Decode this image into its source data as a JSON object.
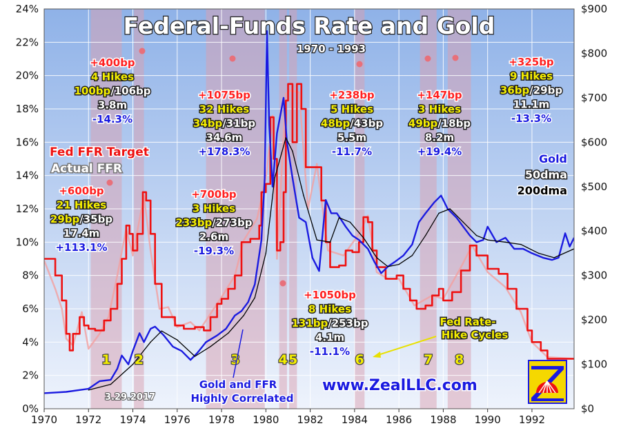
{
  "chart_data": {
    "type": "line",
    "title": "Federal-Funds Rate and Gold",
    "period_label": "1970 - 1993",
    "x_ticks": [
      "1970",
      "1972",
      "1974",
      "1976",
      "1978",
      "1980",
      "1982",
      "1984",
      "1986",
      "1988",
      "1990",
      "1992"
    ],
    "x_range": [
      1970,
      1993.9
    ],
    "y_left": {
      "ticks": [
        "0%",
        "2%",
        "4%",
        "6%",
        "8%",
        "10%",
        "12%",
        "14%",
        "16%",
        "18%",
        "20%",
        "22%",
        "24%"
      ],
      "range": [
        0,
        24
      ]
    },
    "y_right": {
      "ticks": [
        "$0",
        "$100",
        "$200",
        "$300",
        "$400",
        "$500",
        "$600",
        "$700",
        "$800",
        "$900"
      ],
      "range": [
        0,
        900
      ]
    },
    "grid": true,
    "colors": {
      "ffr_target": "#ee1111",
      "actual_ffr": "#f2a0a0",
      "gold": "#1a1ae0",
      "gold_200dma": "#000000",
      "hike_band": "#d9a0b0",
      "bg_top": "#8fb2e8",
      "bg_bottom": "#eef3fc"
    },
    "legend": {
      "left": [
        "Fed FFR Target",
        "Actual FFR"
      ],
      "right": [
        "Gold",
        "50dma",
        "200dma"
      ]
    },
    "hike_cycles": [
      {
        "label": "1",
        "start": 1972.1,
        "end": 1973.5
      },
      {
        "label": "2",
        "start": 1974.05,
        "end": 1974.5
      },
      {
        "label": "3",
        "start": 1977.3,
        "end": 1979.95
      },
      {
        "label": "4",
        "start": 1980.6,
        "end": 1980.95
      },
      {
        "label": "5",
        "start": 1981.05,
        "end": 1981.4
      },
      {
        "label": "6",
        "start": 1984.0,
        "end": 1984.45
      },
      {
        "label": "7",
        "start": 1986.95,
        "end": 1987.7
      },
      {
        "label": "8",
        "start": 1988.2,
        "end": 1989.25
      }
    ],
    "cycle_annotations": [
      {
        "total": "+600bp",
        "hikes": "21 Hikes",
        "bp": "29bp",
        "bp2": "/35bp",
        "months": "17.4m",
        "gold": "+113.1%"
      },
      {
        "total": "+400bp",
        "hikes": "4 Hikes",
        "bp": "100bp",
        "bp2": "/106bp",
        "months": "3.8m",
        "gold": "-14.3%"
      },
      {
        "total": "+700bp",
        "hikes": "3 Hikes",
        "bp": "233bp",
        "bp2": "/273bp",
        "months": "2.6m",
        "gold": "-19.3%"
      },
      {
        "total": "+1075bp",
        "hikes": "32 Hikes",
        "bp": "34bp",
        "bp2": "/31bp",
        "months": "34.6m",
        "gold": "+178.3%"
      },
      {
        "total": "+1050bp",
        "hikes": "8 Hikes",
        "bp": "131bp",
        "bp2": "/253bp",
        "months": "4.1m",
        "gold": "-11.1%"
      },
      {
        "total": "+238bp",
        "hikes": "5 Hikes",
        "bp": "48bp",
        "bp2": "/43bp",
        "months": "5.5m",
        "gold": "-11.7%"
      },
      {
        "total": "+147bp",
        "hikes": "3 Hikes",
        "bp": "49bp",
        "bp2": "/18bp",
        "months": "8.2m",
        "gold": "+19.4%"
      },
      {
        "total": "+325bp",
        "hikes": "9 Hikes",
        "bp": "36bp",
        "bp2": "/29bp",
        "months": "11.1m",
        "gold": "-13.3%"
      }
    ],
    "annotations": {
      "hike_cycles_label": [
        "Fed Rate-",
        "Hike Cycles"
      ],
      "correlated_label": [
        "Gold and FFR",
        "Highly Correlated"
      ],
      "date": "3.29.2017",
      "website": "www.ZealLLC.com"
    },
    "series": [
      {
        "name": "Fed FFR Target",
        "axis": "left",
        "points": [
          [
            1970.0,
            9.0
          ],
          [
            1970.5,
            8.0
          ],
          [
            1970.8,
            6.5
          ],
          [
            1971.0,
            4.5
          ],
          [
            1971.15,
            3.5
          ],
          [
            1971.3,
            4.5
          ],
          [
            1971.6,
            5.5
          ],
          [
            1971.8,
            5.0
          ],
          [
            1972.0,
            4.8
          ],
          [
            1972.3,
            4.7
          ],
          [
            1972.7,
            5.3
          ],
          [
            1973.0,
            6.0
          ],
          [
            1973.3,
            7.5
          ],
          [
            1973.5,
            9.0
          ],
          [
            1973.7,
            11.0
          ],
          [
            1973.85,
            10.5
          ],
          [
            1974.0,
            9.5
          ],
          [
            1974.2,
            10.5
          ],
          [
            1974.45,
            13.0
          ],
          [
            1974.6,
            12.5
          ],
          [
            1974.8,
            10.5
          ],
          [
            1975.0,
            7.5
          ],
          [
            1975.3,
            5.5
          ],
          [
            1975.6,
            5.5
          ],
          [
            1975.9,
            5.0
          ],
          [
            1976.3,
            4.8
          ],
          [
            1976.8,
            4.9
          ],
          [
            1977.2,
            4.7
          ],
          [
            1977.5,
            5.5
          ],
          [
            1977.8,
            6.3
          ],
          [
            1978.0,
            6.6
          ],
          [
            1978.3,
            7.2
          ],
          [
            1978.6,
            8.0
          ],
          [
            1978.9,
            10.0
          ],
          [
            1979.3,
            10.2
          ],
          [
            1979.7,
            11.0
          ],
          [
            1979.8,
            13.0
          ],
          [
            1980.0,
            13.5
          ],
          [
            1980.2,
            17.5
          ],
          [
            1980.35,
            15.0
          ],
          [
            1980.5,
            9.5
          ],
          [
            1980.65,
            10.0
          ],
          [
            1980.8,
            13.0
          ],
          [
            1980.9,
            18.5
          ],
          [
            1981.0,
            19.5
          ],
          [
            1981.2,
            16.0
          ],
          [
            1981.4,
            19.5
          ],
          [
            1981.6,
            18.0
          ],
          [
            1981.8,
            14.5
          ],
          [
            1982.0,
            14.5
          ],
          [
            1982.3,
            14.5
          ],
          [
            1982.5,
            12.5
          ],
          [
            1982.7,
            10.0
          ],
          [
            1982.9,
            8.5
          ],
          [
            1983.3,
            8.6
          ],
          [
            1983.6,
            9.5
          ],
          [
            1983.9,
            9.4
          ],
          [
            1984.2,
            10.0
          ],
          [
            1984.4,
            11.5
          ],
          [
            1984.6,
            11.2
          ],
          [
            1984.8,
            9.5
          ],
          [
            1985.0,
            8.5
          ],
          [
            1985.4,
            7.8
          ],
          [
            1985.9,
            8.0
          ],
          [
            1986.2,
            7.2
          ],
          [
            1986.5,
            6.5
          ],
          [
            1986.8,
            6.0
          ],
          [
            1987.2,
            6.2
          ],
          [
            1987.5,
            6.8
          ],
          [
            1987.8,
            7.2
          ],
          [
            1988.0,
            6.5
          ],
          [
            1988.4,
            7.0
          ],
          [
            1988.8,
            8.3
          ],
          [
            1989.2,
            9.8
          ],
          [
            1989.5,
            9.2
          ],
          [
            1990.0,
            8.4
          ],
          [
            1990.5,
            8.1
          ],
          [
            1990.9,
            7.2
          ],
          [
            1991.3,
            6.0
          ],
          [
            1991.8,
            4.7
          ],
          [
            1992.0,
            4.0
          ],
          [
            1992.4,
            3.5
          ],
          [
            1992.7,
            3.0
          ],
          [
            1993.9,
            3.0
          ]
        ]
      },
      {
        "name": "Actual FFR",
        "axis": "left",
        "points": [
          [
            1970.0,
            8.9
          ],
          [
            1970.5,
            7.2
          ],
          [
            1970.8,
            6.0
          ],
          [
            1971.0,
            4.2
          ],
          [
            1971.3,
            3.8
          ],
          [
            1971.7,
            5.8
          ],
          [
            1972.0,
            3.6
          ],
          [
            1972.5,
            4.5
          ],
          [
            1972.9,
            5.5
          ],
          [
            1973.3,
            8.0
          ],
          [
            1973.7,
            10.8
          ],
          [
            1974.0,
            9.2
          ],
          [
            1974.5,
            12.8
          ],
          [
            1974.8,
            9.5
          ],
          [
            1975.2,
            6.0
          ],
          [
            1975.6,
            6.1
          ],
          [
            1976.0,
            4.9
          ],
          [
            1976.6,
            5.2
          ],
          [
            1977.0,
            4.7
          ],
          [
            1977.6,
            5.9
          ],
          [
            1978.0,
            6.7
          ],
          [
            1978.6,
            8.0
          ],
          [
            1979.0,
            10.1
          ],
          [
            1979.6,
            11.4
          ],
          [
            1980.0,
            13.8
          ],
          [
            1980.3,
            17.6
          ],
          [
            1980.5,
            9.0
          ],
          [
            1980.9,
            18.9
          ],
          [
            1981.1,
            19.1
          ],
          [
            1981.5,
            19.0
          ],
          [
            1981.9,
            12.0
          ],
          [
            1982.3,
            14.7
          ],
          [
            1982.8,
            9.5
          ],
          [
            1983.5,
            9.2
          ],
          [
            1984.2,
            10.5
          ],
          [
            1984.6,
            11.6
          ],
          [
            1985.0,
            8.2
          ],
          [
            1985.5,
            7.8
          ],
          [
            1986.0,
            7.8
          ],
          [
            1986.7,
            6.2
          ],
          [
            1987.5,
            6.8
          ],
          [
            1988.0,
            6.6
          ],
          [
            1988.8,
            8.5
          ],
          [
            1989.3,
            9.8
          ],
          [
            1990.0,
            8.2
          ],
          [
            1990.8,
            7.3
          ],
          [
            1991.5,
            5.8
          ],
          [
            1992.0,
            4.0
          ],
          [
            1992.7,
            3.1
          ],
          [
            1993.9,
            3.0
          ]
        ]
      },
      {
        "name": "Gold",
        "axis": "right",
        "points": [
          [
            1970.0,
            35
          ],
          [
            1971.0,
            38
          ],
          [
            1972.0,
            45
          ],
          [
            1972.5,
            62
          ],
          [
            1973.0,
            65
          ],
          [
            1973.3,
            90
          ],
          [
            1973.5,
            120
          ],
          [
            1973.8,
            100
          ],
          [
            1974.0,
            130
          ],
          [
            1974.3,
            170
          ],
          [
            1974.5,
            150
          ],
          [
            1974.8,
            180
          ],
          [
            1975.0,
            185
          ],
          [
            1975.4,
            165
          ],
          [
            1975.8,
            140
          ],
          [
            1976.2,
            130
          ],
          [
            1976.6,
            110
          ],
          [
            1976.9,
            125
          ],
          [
            1977.3,
            150
          ],
          [
            1977.8,
            165
          ],
          [
            1978.2,
            180
          ],
          [
            1978.6,
            210
          ],
          [
            1978.9,
            220
          ],
          [
            1979.2,
            240
          ],
          [
            1979.5,
            280
          ],
          [
            1979.8,
            380
          ],
          [
            1979.95,
            520
          ],
          [
            1980.05,
            850
          ],
          [
            1980.15,
            640
          ],
          [
            1980.3,
            500
          ],
          [
            1980.5,
            620
          ],
          [
            1980.8,
            700
          ],
          [
            1980.95,
            600
          ],
          [
            1981.2,
            520
          ],
          [
            1981.5,
            430
          ],
          [
            1981.8,
            420
          ],
          [
            1982.1,
            340
          ],
          [
            1982.4,
            310
          ],
          [
            1982.7,
            470
          ],
          [
            1982.95,
            440
          ],
          [
            1983.2,
            440
          ],
          [
            1983.6,
            410
          ],
          [
            1983.9,
            390
          ],
          [
            1984.2,
            380
          ],
          [
            1984.6,
            360
          ],
          [
            1984.9,
            330
          ],
          [
            1985.2,
            305
          ],
          [
            1985.5,
            320
          ],
          [
            1985.8,
            330
          ],
          [
            1986.2,
            345
          ],
          [
            1986.6,
            370
          ],
          [
            1986.9,
            420
          ],
          [
            1987.2,
            440
          ],
          [
            1987.6,
            465
          ],
          [
            1987.9,
            480
          ],
          [
            1988.2,
            450
          ],
          [
            1988.6,
            430
          ],
          [
            1988.9,
            410
          ],
          [
            1989.2,
            390
          ],
          [
            1989.5,
            375
          ],
          [
            1989.8,
            380
          ],
          [
            1990.0,
            410
          ],
          [
            1990.4,
            375
          ],
          [
            1990.8,
            385
          ],
          [
            1991.2,
            360
          ],
          [
            1991.6,
            360
          ],
          [
            1992.0,
            350
          ],
          [
            1992.5,
            340
          ],
          [
            1992.9,
            335
          ],
          [
            1993.2,
            340
          ],
          [
            1993.5,
            395
          ],
          [
            1993.7,
            365
          ],
          [
            1993.9,
            385
          ]
        ]
      },
      {
        "name": "200dma",
        "axis": "right",
        "points": [
          [
            1972.0,
            42
          ],
          [
            1973.0,
            55
          ],
          [
            1974.0,
            100
          ],
          [
            1974.8,
            150
          ],
          [
            1975.3,
            175
          ],
          [
            1976.0,
            155
          ],
          [
            1976.8,
            118
          ],
          [
            1977.5,
            140
          ],
          [
            1978.3,
            170
          ],
          [
            1979.0,
            210
          ],
          [
            1979.5,
            250
          ],
          [
            1980.0,
            350
          ],
          [
            1980.4,
            520
          ],
          [
            1980.9,
            610
          ],
          [
            1981.2,
            580
          ],
          [
            1981.7,
            480
          ],
          [
            1982.3,
            380
          ],
          [
            1982.9,
            375
          ],
          [
            1983.3,
            430
          ],
          [
            1983.8,
            420
          ],
          [
            1984.4,
            385
          ],
          [
            1985.0,
            340
          ],
          [
            1985.5,
            320
          ],
          [
            1986.0,
            325
          ],
          [
            1986.6,
            345
          ],
          [
            1987.2,
            390
          ],
          [
            1987.8,
            440
          ],
          [
            1988.3,
            450
          ],
          [
            1988.9,
            420
          ],
          [
            1989.5,
            390
          ],
          [
            1990.0,
            380
          ],
          [
            1990.8,
            375
          ],
          [
            1991.5,
            370
          ],
          [
            1992.3,
            350
          ],
          [
            1993.0,
            340
          ],
          [
            1993.9,
            360
          ]
        ]
      }
    ]
  }
}
